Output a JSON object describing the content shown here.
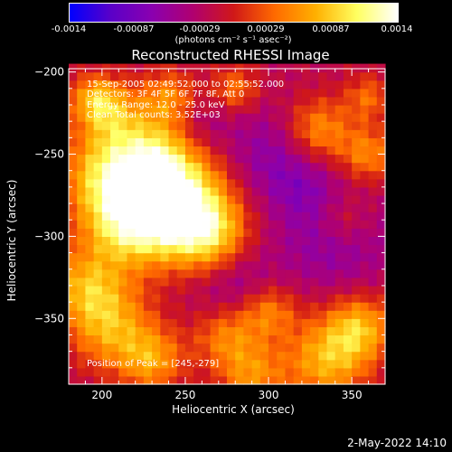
{
  "colorbar": {
    "ticks": [
      "-0.0014",
      "-0.00087",
      "-0.00029",
      "0.00029",
      "0.00087",
      "0.0014"
    ],
    "units_label": "(photons cm⁻² s⁻¹ asec⁻²)",
    "colors": [
      "#0000ff",
      "#5a00c8",
      "#8a00b0",
      "#b00070",
      "#d01818",
      "#ff6a00",
      "#ffb000",
      "#ffff60",
      "#ffffff"
    ]
  },
  "annotations": {
    "time": "15-Sep-2005 02:49:52.000 to 02:55:52.000",
    "detectors": "Detectors: 3F 4F 5F 6F 7F 8F, Att 0",
    "energy": "Energy Range: 12.0 - 25.0 keV",
    "clean": "Clean     Total counts: 3.52E+03",
    "peak": "Position of Peak = [245,-279]"
  },
  "footer": "2-May-2022 14:10",
  "chart_data": {
    "type": "heatmap",
    "title": "Reconstructed RHESSI Image",
    "xlabel": "Heliocentric X (arcsec)",
    "ylabel": "Heliocentric Y (arcsec)",
    "xlim": [
      180,
      370
    ],
    "ylim": [
      -390,
      -198
    ],
    "xticks": [
      200,
      250,
      300,
      350
    ],
    "yticks": [
      -200,
      -250,
      -300,
      -350
    ],
    "peak": [
      245,
      -279
    ],
    "color_range": [
      -0.0014,
      0.0014
    ],
    "grid": false
  }
}
